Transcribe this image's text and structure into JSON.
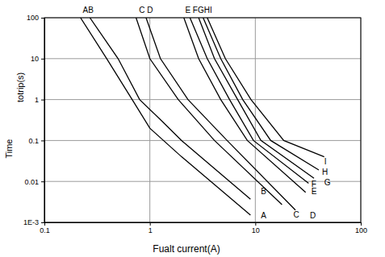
{
  "chart_data": {
    "type": "line",
    "log": true,
    "grid": true,
    "xlabel": "Fualt current(A)",
    "ylabel": [
      "Time",
      "totrip(s)"
    ],
    "xlim": [
      0.1,
      100
    ],
    "ylim": [
      0.001,
      100
    ],
    "xticks": [
      0.1,
      1,
      10,
      100
    ],
    "yticks": [
      {
        "value": 0.001,
        "label": "1E-3"
      },
      0.01,
      0.1,
      1,
      10,
      100
    ],
    "annotations": [
      {
        "text": "AB",
        "x": 0.26
      },
      {
        "text": "C D",
        "x": 0.92
      },
      {
        "text": "E FGHI",
        "x": 2.9
      }
    ],
    "series": [
      {
        "name": "A",
        "color": "#000000",
        "label_at": [
          11.3,
          0.0014
        ],
        "x": [
          0.22,
          0.39,
          0.68,
          1.0,
          2.0,
          9.0
        ],
        "values": [
          100,
          10,
          1,
          0.2,
          0.04,
          0.0015
        ]
      },
      {
        "name": "B",
        "color": "#000000",
        "label_at": [
          11.3,
          0.0054
        ],
        "x": [
          0.27,
          0.5,
          0.8,
          1.3,
          2.0,
          9.0
        ],
        "values": [
          100,
          10,
          1,
          0.3,
          0.1,
          0.0037
        ]
      },
      {
        "name": "C",
        "color": "#000000",
        "label_at": [
          23,
          0.0015
        ],
        "x": [
          0.74,
          1.0,
          1.86,
          4.1,
          17.9
        ],
        "values": [
          100,
          10,
          1,
          0.1,
          0.0027
        ]
      },
      {
        "name": "D",
        "color": "#000000",
        "label_at": [
          33,
          0.0014
        ],
        "x": [
          0.92,
          1.26,
          2.3,
          5.4,
          24
        ],
        "values": [
          100,
          10,
          1,
          0.1,
          0.002
        ]
      },
      {
        "name": "E",
        "color": "#000000",
        "label_at": [
          34,
          0.0054
        ],
        "x": [
          2.1,
          2.9,
          4.7,
          8.4,
          30
        ],
        "values": [
          100,
          10,
          1,
          0.1,
          0.0054
        ]
      },
      {
        "name": "F",
        "color": "#000000",
        "label_at": [
          34,
          0.0083
        ],
        "x": [
          2.4,
          3.5,
          5.7,
          9.6,
          32
        ],
        "values": [
          100,
          10,
          1,
          0.1,
          0.009
        ]
      },
      {
        "name": "G",
        "color": "#000000",
        "label_at": [
          45,
          0.0091
        ],
        "x": [
          2.9,
          4.1,
          6.8,
          11.3,
          36
        ],
        "values": [
          100,
          10,
          1,
          0.1,
          0.012
        ]
      },
      {
        "name": "H",
        "color": "#000000",
        "label_at": [
          43,
          0.016
        ],
        "x": [
          3.2,
          4.7,
          7.6,
          14,
          40
        ],
        "values": [
          100,
          10,
          1,
          0.1,
          0.019
        ]
      },
      {
        "name": "I",
        "color": "#000000",
        "label_at": [
          45,
          0.03
        ],
        "x": [
          3.5,
          5.2,
          9.1,
          18.6,
          45
        ],
        "values": [
          100,
          10,
          1,
          0.1,
          0.04
        ]
      }
    ]
  }
}
